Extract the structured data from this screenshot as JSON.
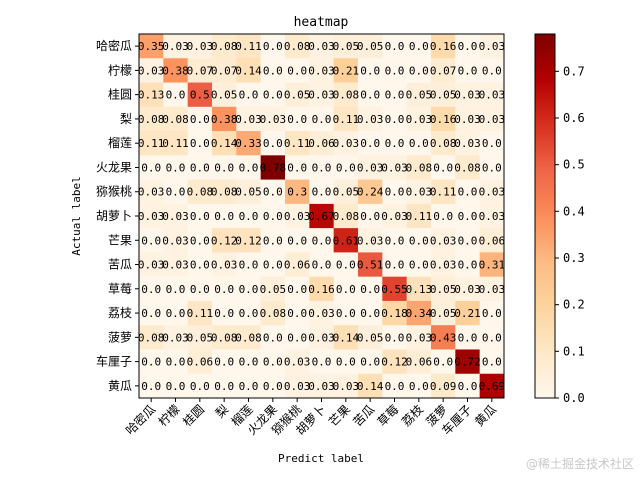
{
  "chart_data": {
    "type": "heatmap",
    "title": "heatmap",
    "xlabel": "Predict label",
    "ylabel": "Actual label",
    "categories": [
      "哈密瓜",
      "柠檬",
      "桂圆",
      "梨",
      "榴莲",
      "火龙果",
      "猕猴桃",
      "胡萝卜",
      "芒果",
      "苦瓜",
      "草莓",
      "荔枝",
      "菠萝",
      "车厘子",
      "黄瓜"
    ],
    "values": [
      [
        0.35,
        0.03,
        0.03,
        0.08,
        0.11,
        0.0,
        0.08,
        0.03,
        0.05,
        0.05,
        0.0,
        0.0,
        0.16,
        0.0,
        0.03
      ],
      [
        0.03,
        0.38,
        0.07,
        0.07,
        0.14,
        0.0,
        0.0,
        0.03,
        0.21,
        0.0,
        0.0,
        0.0,
        0.07,
        0.0,
        0.0
      ],
      [
        0.13,
        0.0,
        0.5,
        0.05,
        0.0,
        0.0,
        0.05,
        0.03,
        0.08,
        0.0,
        0.0,
        0.05,
        0.05,
        0.03,
        0.03
      ],
      [
        0.08,
        0.08,
        0.0,
        0.38,
        0.03,
        0.03,
        0.0,
        0.0,
        0.11,
        0.03,
        0.0,
        0.03,
        0.16,
        0.03,
        0.03
      ],
      [
        0.11,
        0.11,
        0.0,
        0.14,
        0.33,
        0.0,
        0.11,
        0.06,
        0.03,
        0.0,
        0.0,
        0.0,
        0.08,
        0.03,
        0.0
      ],
      [
        0.0,
        0.0,
        0.0,
        0.0,
        0.0,
        0.78,
        0.0,
        0.0,
        0.0,
        0.03,
        0.03,
        0.08,
        0.0,
        0.08,
        0.0
      ],
      [
        0.03,
        0.0,
        0.08,
        0.08,
        0.05,
        0.0,
        0.3,
        0.0,
        0.05,
        0.24,
        0.0,
        0.03,
        0.11,
        0.0,
        0.03
      ],
      [
        0.03,
        0.03,
        0.0,
        0.0,
        0.0,
        0.0,
        0.03,
        0.67,
        0.08,
        0.0,
        0.03,
        0.11,
        0.0,
        0.0,
        0.03
      ],
      [
        0.0,
        0.03,
        0.0,
        0.12,
        0.12,
        0.0,
        0.0,
        0.0,
        0.61,
        0.03,
        0.0,
        0.0,
        0.03,
        0.0,
        0.06
      ],
      [
        0.03,
        0.03,
        0.0,
        0.03,
        0.0,
        0.0,
        0.06,
        0.0,
        0.0,
        0.51,
        0.0,
        0.0,
        0.03,
        0.0,
        0.31
      ],
      [
        0.0,
        0.0,
        0.0,
        0.0,
        0.0,
        0.05,
        0.0,
        0.16,
        0.0,
        0.0,
        0.55,
        0.13,
        0.05,
        0.03,
        0.03
      ],
      [
        0.0,
        0.0,
        0.11,
        0.0,
        0.0,
        0.08,
        0.0,
        0.03,
        0.0,
        0.0,
        0.18,
        0.34,
        0.05,
        0.21,
        0.0
      ],
      [
        0.08,
        0.03,
        0.05,
        0.08,
        0.08,
        0.0,
        0.0,
        0.03,
        0.14,
        0.05,
        0.0,
        0.03,
        0.43,
        0.0,
        0.0
      ],
      [
        0.0,
        0.0,
        0.06,
        0.0,
        0.0,
        0.0,
        0.03,
        0.0,
        0.0,
        0.0,
        0.12,
        0.06,
        0.0,
        0.72,
        0.0
      ],
      [
        0.0,
        0.0,
        0.0,
        0.0,
        0.0,
        0.0,
        0.03,
        0.03,
        0.03,
        0.14,
        0.0,
        0.0,
        0.09,
        0.0,
        0.69
      ]
    ],
    "value_labels": [
      [
        "0.35",
        "0.03",
        "0.03",
        "0.08",
        "0.11",
        "0.0",
        "0.08",
        "0.03",
        "0.05",
        "0.05",
        "0.0",
        "0.0",
        "0.16",
        "0.0",
        "0.03"
      ],
      [
        "0.03",
        "0.38",
        "0.07",
        "0.07",
        "0.14",
        "0.0",
        "0.0",
        "0.03",
        "0.21",
        "0.0",
        "0.0",
        "0.0",
        "0.07",
        "0.0",
        "0.0"
      ],
      [
        "0.13",
        "0.0",
        "0.5",
        "0.05",
        "0.0",
        "0.0",
        "0.05",
        "0.03",
        "0.08",
        "0.0",
        "0.0",
        "0.05",
        "0.05",
        "0.03",
        "0.03"
      ],
      [
        "0.08",
        "0.08",
        "0.0",
        "0.38",
        "0.03",
        "0.03",
        "0.0",
        "0.0",
        "0.11",
        "0.03",
        "0.0",
        "0.03",
        "0.16",
        "0.03",
        "0.03"
      ],
      [
        "0.11",
        "0.11",
        "0.0",
        "0.14",
        "0.33",
        "0.0",
        "0.11",
        "0.06",
        "0.03",
        "0.0",
        "0.0",
        "0.0",
        "0.08",
        "0.03",
        "0.0"
      ],
      [
        "0.0",
        "0.0",
        "0.0",
        "0.0",
        "0.0",
        "0.78",
        "0.0",
        "0.0",
        "0.0",
        "0.03",
        "0.03",
        "0.08",
        "0.0",
        "0.08",
        "0.0"
      ],
      [
        "0.03",
        "0.0",
        "0.08",
        "0.08",
        "0.05",
        "0.0",
        "0.3",
        "0.0",
        "0.05",
        "0.24",
        "0.0",
        "0.03",
        "0.11",
        "0.0",
        "0.03"
      ],
      [
        "0.03",
        "0.03",
        "0.0",
        "0.0",
        "0.0",
        "0.0",
        "0.03",
        "0.67",
        "0.08",
        "0.0",
        "0.03",
        "0.11",
        "0.0",
        "0.0",
        "0.03"
      ],
      [
        "0.0",
        "0.03",
        "0.0",
        "0.12",
        "0.12",
        "0.0",
        "0.0",
        "0.0",
        "0.61",
        "0.03",
        "0.0",
        "0.0",
        "0.03",
        "0.0",
        "0.06"
      ],
      [
        "0.03",
        "0.03",
        "0.0",
        "0.03",
        "0.0",
        "0.0",
        "0.06",
        "0.0",
        "0.0",
        "0.51",
        "0.0",
        "0.0",
        "0.03",
        "0.0",
        "0.31"
      ],
      [
        "0.0",
        "0.0",
        "0.0",
        "0.0",
        "0.0",
        "0.05",
        "0.0",
        "0.16",
        "0.0",
        "0.0",
        "0.55",
        "0.13",
        "0.05",
        "0.03",
        "0.03"
      ],
      [
        "0.0",
        "0.0",
        "0.11",
        "0.0",
        "0.0",
        "0.08",
        "0.0",
        "0.03",
        "0.0",
        "0.0",
        "0.18",
        "0.34",
        "0.05",
        "0.21",
        "0.0"
      ],
      [
        "0.08",
        "0.03",
        "0.05",
        "0.08",
        "0.08",
        "0.0",
        "0.0",
        "0.03",
        "0.14",
        "0.05",
        "0.0",
        "0.03",
        "0.43",
        "0.0",
        "0.0"
      ],
      [
        "0.0",
        "0.0",
        "0.06",
        "0.0",
        "0.0",
        "0.0",
        "0.03",
        "0.0",
        "0.0",
        "0.0",
        "0.12",
        "0.06",
        "0.0",
        "0.72",
        "0.0"
      ],
      [
        "0.0",
        "0.0",
        "0.0",
        "0.0",
        "0.0",
        "0.0",
        "0.03",
        "0.03",
        "0.03",
        "0.14",
        "0.0",
        "0.0",
        "0.09",
        "0.0",
        "0.69"
      ]
    ],
    "colorbar": {
      "colormap": "OrRd",
      "vmin": 0,
      "vmax": 0.78,
      "ticks": [
        "0.0",
        "0.1",
        "0.2",
        "0.3",
        "0.4",
        "0.5",
        "0.6",
        "0.7"
      ]
    }
  },
  "watermark": "@稀土掘金技术社区"
}
